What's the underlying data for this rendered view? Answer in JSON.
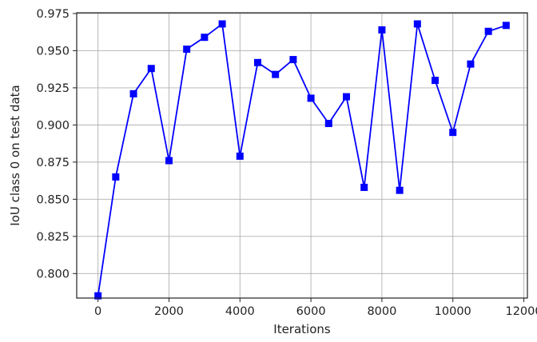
{
  "chart_data": {
    "type": "line",
    "title": "",
    "xlabel": "Iterations",
    "ylabel": "IoU class 0 on test data",
    "xlim": [
      -600,
      12100
    ],
    "ylim": [
      0.7835,
      0.9755
    ],
    "grid": true,
    "x_ticks": [
      0,
      2000,
      4000,
      6000,
      8000,
      10000,
      12000
    ],
    "y_ticks": [
      0.8,
      0.825,
      0.85,
      0.875,
      0.9,
      0.925,
      0.95,
      0.975
    ],
    "x_tick_labels": [
      "0",
      "2000",
      "4000",
      "6000",
      "8000",
      "10000",
      "12000"
    ],
    "y_tick_labels": [
      "0.800",
      "0.825",
      "0.850",
      "0.875",
      "0.900",
      "0.925",
      "0.950",
      "0.975"
    ],
    "series": [
      {
        "color": "#0000ff",
        "marker": "square",
        "x": [
          0,
          500,
          1000,
          1500,
          2000,
          2500,
          3000,
          3500,
          4000,
          4500,
          5000,
          5500,
          6000,
          6500,
          7000,
          7500,
          8000,
          8500,
          9000,
          9500,
          10000,
          10500,
          11000,
          11500
        ],
        "y": [
          0.785,
          0.865,
          0.921,
          0.938,
          0.876,
          0.951,
          0.959,
          0.968,
          0.879,
          0.942,
          0.934,
          0.944,
          0.918,
          0.901,
          0.919,
          0.858,
          0.964,
          0.856,
          0.968,
          0.93,
          0.895,
          0.941,
          0.963,
          0.967
        ]
      }
    ]
  }
}
